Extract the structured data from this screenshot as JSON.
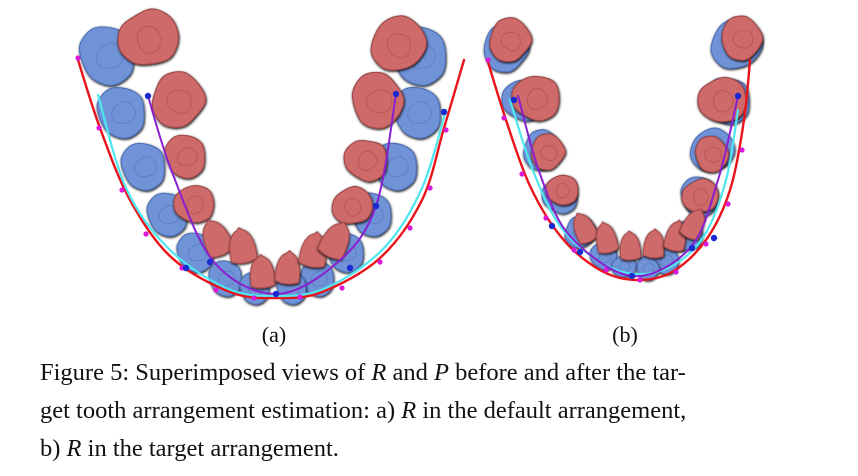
{
  "figure": {
    "panels": [
      {
        "id": "a",
        "label": "(a)"
      },
      {
        "id": "b",
        "label": "(b)"
      }
    ],
    "colors": {
      "tooth_red": "#cf6a6a",
      "tooth_red_dark": "#9e4646",
      "tooth_blue": "#6f92d6",
      "tooth_blue_dark": "#4b6fb8",
      "outer_curve": "#e8141a",
      "cyan_curve": "#4fe6ef",
      "purple_curve": "#8a1fd0",
      "point_magenta": "#d81ad8",
      "point_blue": "#1a2ad0"
    }
  },
  "caption": {
    "line1": {
      "prefix": "Figure 5: Superimposed views of ",
      "var1": "R",
      "mid": " and ",
      "var2": "P",
      "suffix": " before and after the tar-"
    },
    "line2": {
      "prefix": "get tooth arrangement estimation: a) ",
      "var1": "R",
      "suffix": " in the default arrangement,"
    },
    "line3": {
      "prefix": "b) ",
      "var1": "R",
      "suffix": " in the target arrangement."
    }
  }
}
